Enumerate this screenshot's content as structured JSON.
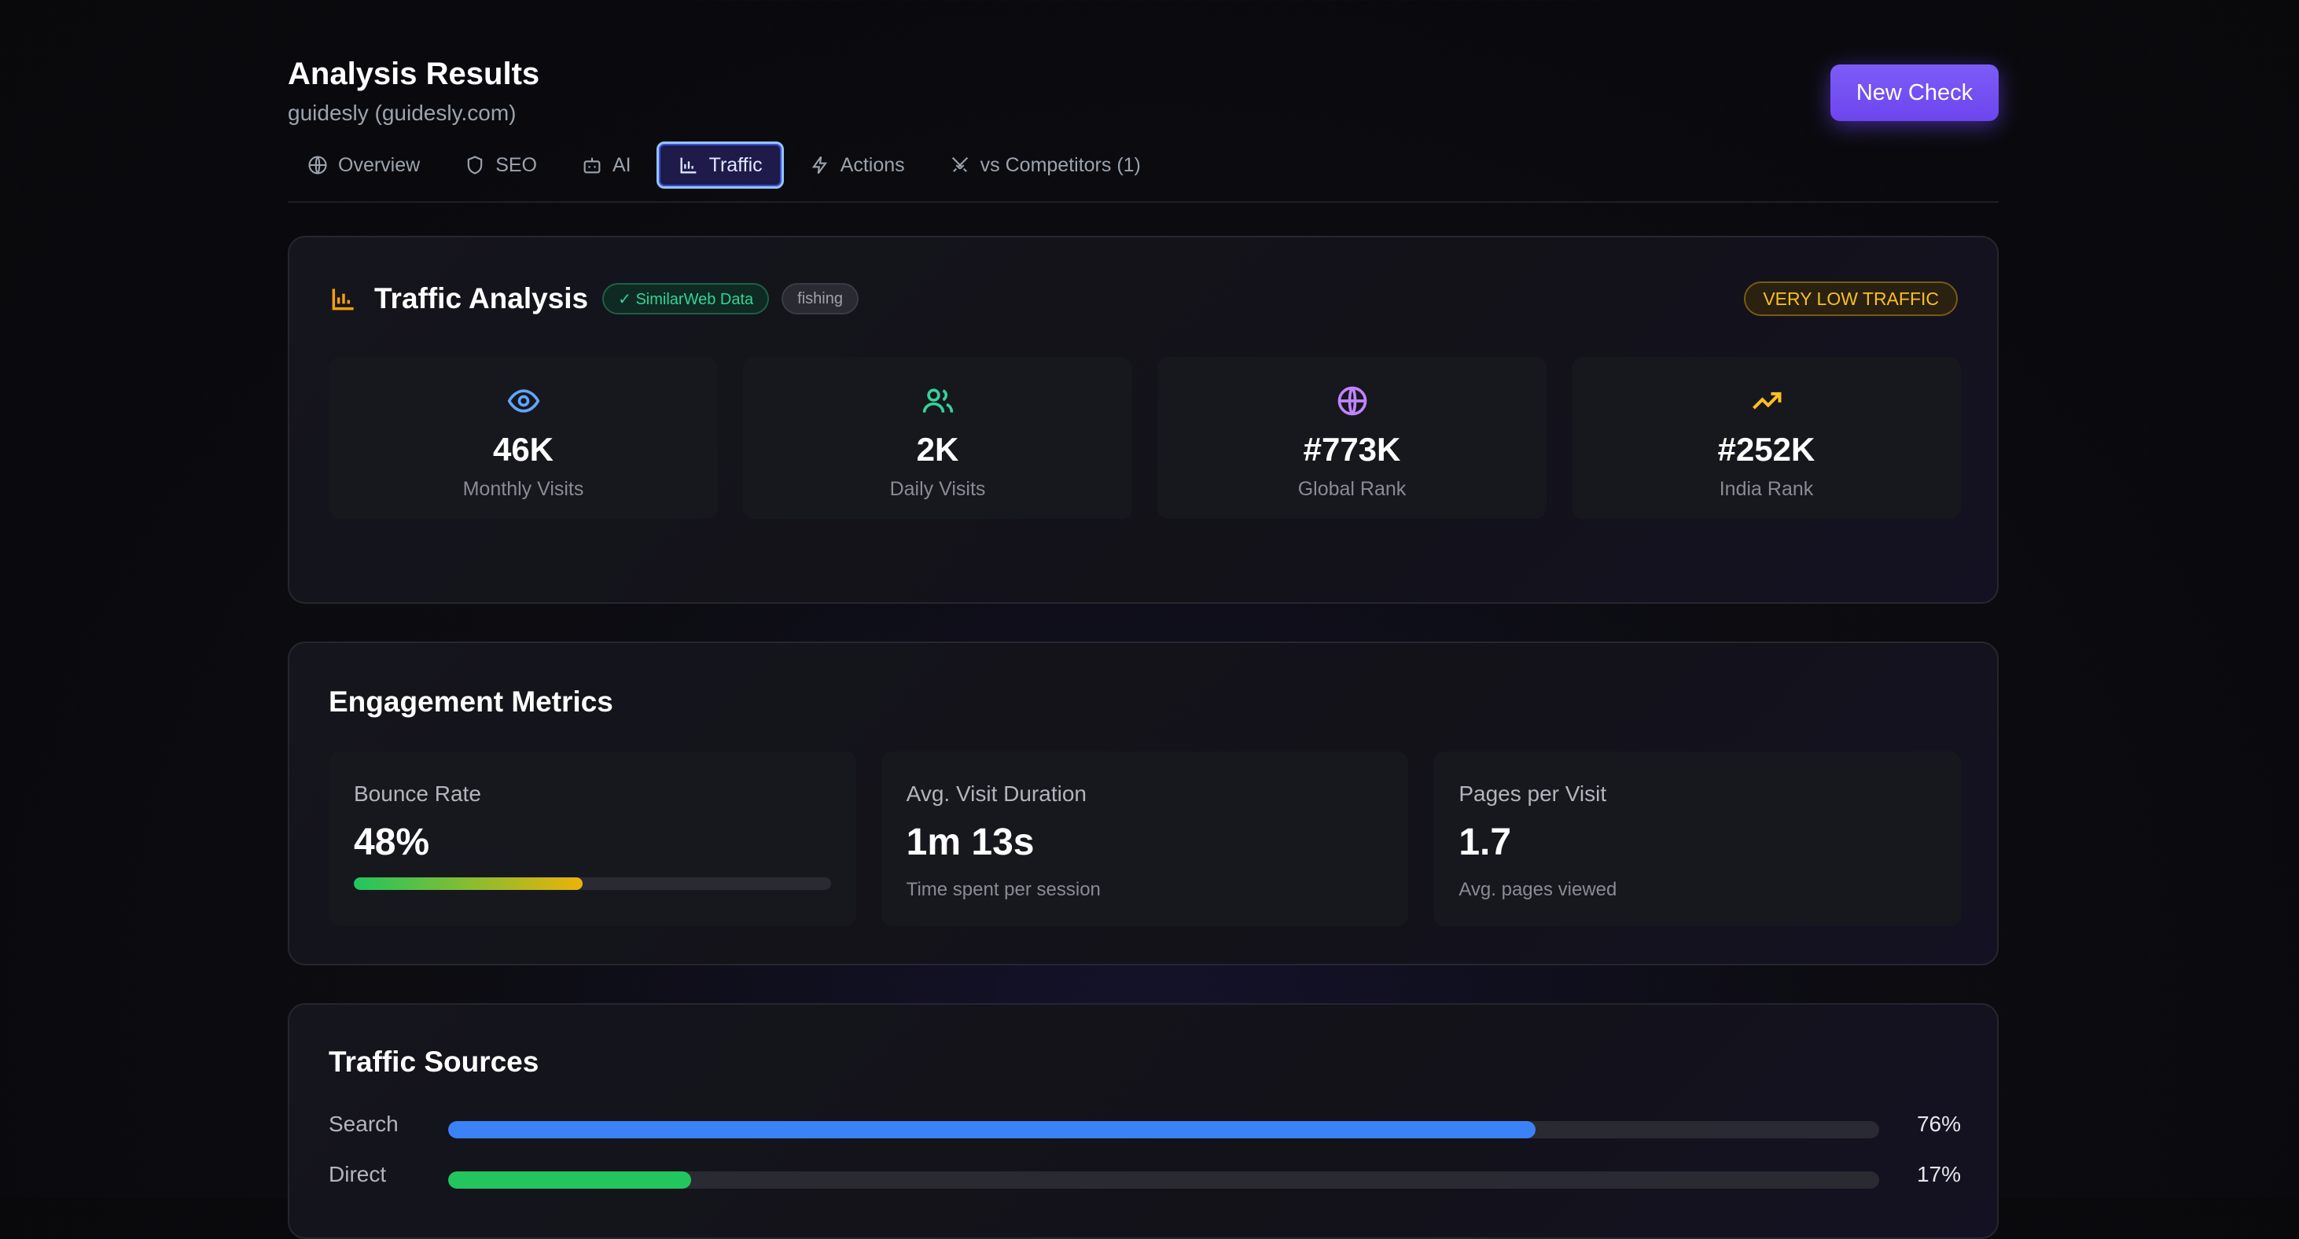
{
  "header": {
    "title": "Analysis Results",
    "subtitle": "guidesly (guidesly.com)",
    "new_check_label": "New Check"
  },
  "tabs": [
    {
      "label": "Overview",
      "icon": "globe-icon",
      "active": false
    },
    {
      "label": "SEO",
      "icon": "shield-icon",
      "active": false
    },
    {
      "label": "AI",
      "icon": "bot-icon",
      "active": false
    },
    {
      "label": "Traffic",
      "icon": "bar-chart-icon",
      "active": true
    },
    {
      "label": "Actions",
      "icon": "lightning-icon",
      "active": false
    },
    {
      "label": "vs Competitors (1)",
      "icon": "swords-icon",
      "active": false
    }
  ],
  "traffic": {
    "title": "Traffic Analysis",
    "source_badge": "✓ SimilarWeb Data",
    "category_badge": "fishing",
    "level_badge": "VERY LOW TRAFFIC",
    "stats": [
      {
        "value": "46K",
        "label": "Monthly Visits",
        "icon": "eye-icon",
        "color": "#60a5fa"
      },
      {
        "value": "2K",
        "label": "Daily Visits",
        "icon": "users-icon",
        "color": "#34d399"
      },
      {
        "value": "#773K",
        "label": "Global Rank",
        "icon": "globe-icon",
        "color": "#c084fc"
      },
      {
        "value": "#252K",
        "label": "India Rank",
        "icon": "trending-up-icon",
        "color": "#fbbf24"
      }
    ]
  },
  "engagement": {
    "title": "Engagement Metrics",
    "metrics": [
      {
        "label": "Bounce Rate",
        "value": "48%",
        "fraction": 0.48
      },
      {
        "label": "Avg. Visit Duration",
        "value": "1m 13s",
        "sub": "Time spent per session"
      },
      {
        "label": "Pages per Visit",
        "value": "1.7",
        "sub": "Avg. pages viewed"
      }
    ]
  },
  "sources": {
    "title": "Traffic Sources",
    "items": [
      {
        "label": "Search",
        "pct": "76%",
        "fraction": 0.76,
        "color": "#3b82f6"
      },
      {
        "label": "Direct",
        "pct": "17%",
        "fraction": 0.17,
        "color": "#22c55e"
      }
    ]
  },
  "colors": {
    "accent": "#6d45ee",
    "traffic_icon": "#f59e0b"
  }
}
